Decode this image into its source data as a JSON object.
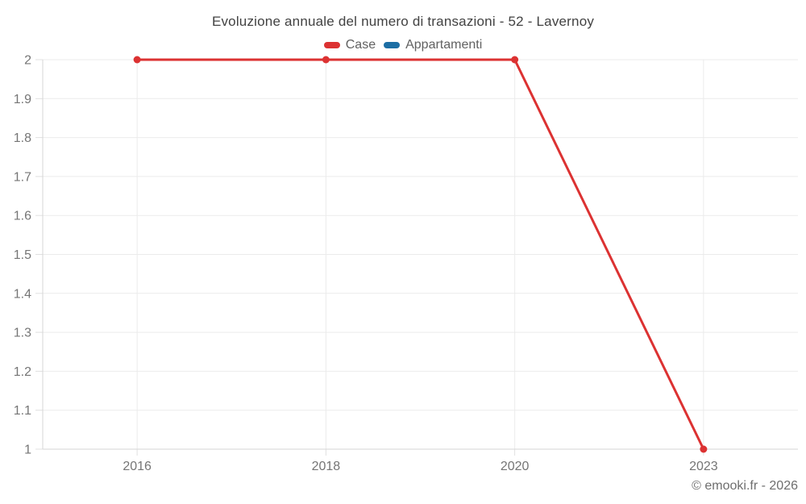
{
  "title": "Evoluzione annuale del numero di transazioni - 52 - Lavernoy",
  "legend": {
    "items": [
      {
        "label": "Case",
        "color": "#dc3232"
      },
      {
        "label": "Appartamenti",
        "color": "#1c6ea4"
      }
    ]
  },
  "footer": {
    "copyright": "© emooki.fr - 2026"
  },
  "colors": {
    "case_red": "#dc3232",
    "appartamenti_blue": "#1c6ea4",
    "grid_line": "#ebebeb",
    "axis_line": "#d6d6d6",
    "tick_mark": "#e0e0e0",
    "tick_label": "#757575",
    "title_text": "#424242"
  },
  "chart_data": {
    "type": "line",
    "title": "Evoluzione annuale del numero di transazioni - 52 - Lavernoy",
    "categories": [
      "2016",
      "2018",
      "2020",
      "2023"
    ],
    "series": [
      {
        "name": "Case",
        "color": "#dc3232",
        "values": [
          2,
          2,
          2,
          1
        ]
      },
      {
        "name": "Appartamenti",
        "color": "#1c6ea4",
        "values": []
      }
    ],
    "xlabel": "",
    "ylabel": "",
    "ylim": [
      1,
      2
    ],
    "yticks": [
      "1",
      "1.1",
      "1.2",
      "1.3",
      "1.4",
      "1.5",
      "1.6",
      "1.7",
      "1.8",
      "1.9",
      "2"
    ],
    "grid": true,
    "legend_position": "top"
  }
}
